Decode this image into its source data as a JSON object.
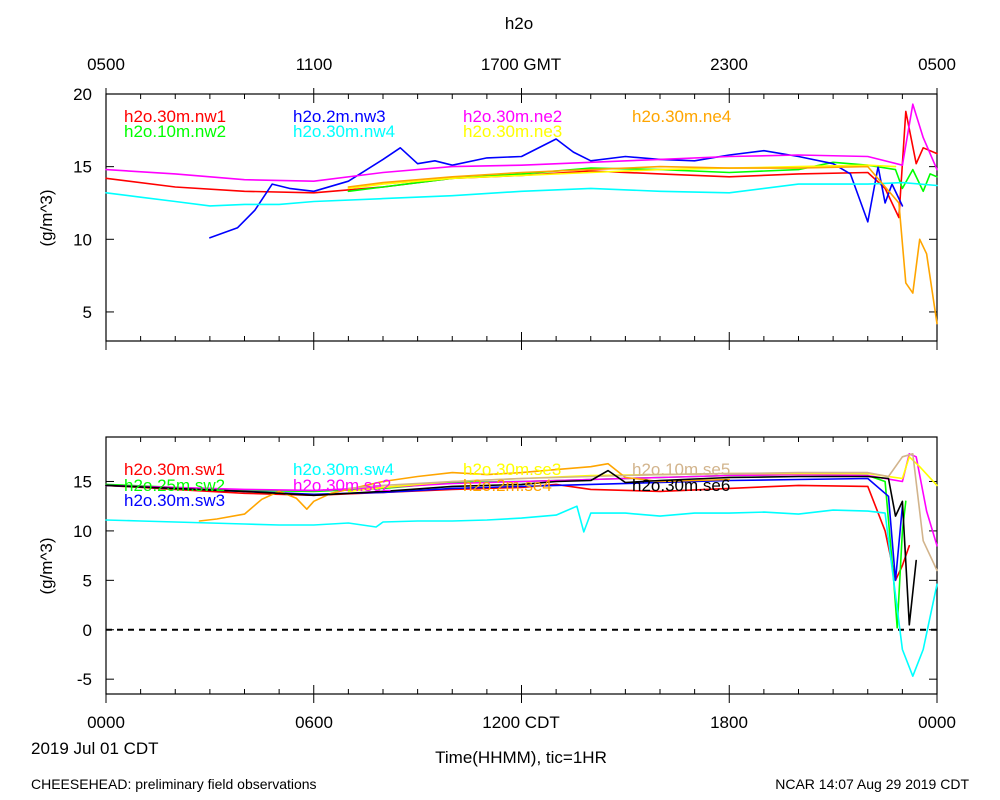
{
  "title": "h2o",
  "top_axis_ticks": [
    "0500",
    "1100",
    "1700 GMT",
    "2300",
    "0500"
  ],
  "bottom_axis_ticks": [
    "0000",
    "0600",
    "1200 CDT",
    "1800",
    "0000"
  ],
  "date_label": "2019 Jul 01 CDT",
  "xlabel": "Time(HHMM), tic=1HR",
  "footer_left": "CHEESEHEAD: preliminary field observations",
  "footer_right": "NCAR 14:07 Aug 29 2019 CDT",
  "chart_data": [
    {
      "type": "line",
      "panel": "top",
      "ylabel": "(g/m^3)",
      "xlim": [
        0,
        24
      ],
      "ylim": [
        3,
        20
      ],
      "yticks": [
        5,
        10,
        15,
        20
      ],
      "ytick_labels": [
        "5",
        "10",
        "15",
        "20"
      ],
      "series": [
        {
          "name": "h2o.30m.nw1",
          "color": "#ff0000",
          "x": [
            0,
            2,
            4,
            6,
            8,
            10,
            12,
            14,
            16,
            18,
            20,
            22,
            22.5,
            22.9,
            23.1,
            23.4,
            23.6,
            24
          ],
          "y": [
            14.2,
            13.6,
            13.3,
            13.2,
            13.6,
            14.2,
            14.4,
            14.7,
            14.5,
            14.3,
            14.5,
            14.6,
            13.5,
            11.5,
            18.8,
            15.2,
            16.3,
            15.9
          ]
        },
        {
          "name": "h2o.10m.nw2",
          "color": "#00ff00",
          "x": [
            7,
            8,
            10,
            12,
            14,
            16,
            18,
            20,
            21,
            22,
            22.8,
            23,
            23.3,
            23.6,
            23.8,
            24
          ],
          "y": [
            13.3,
            13.6,
            14.2,
            14.5,
            14.9,
            14.8,
            14.6,
            14.8,
            15.3,
            15.1,
            14.8,
            13.5,
            14.8,
            13.3,
            14.5,
            14.3
          ]
        },
        {
          "name": "h2o.2m.nw3",
          "color": "#0000ff",
          "x": [
            3,
            3.8,
            4.3,
            4.8,
            5.3,
            6,
            7,
            8,
            8.5,
            9,
            9.5,
            10,
            11,
            12,
            13,
            13.5,
            14,
            15,
            16,
            17,
            18,
            19,
            20,
            21,
            21.5,
            22,
            22.3,
            22.5,
            22.7,
            23
          ],
          "y": [
            10.1,
            10.8,
            12.0,
            13.8,
            13.5,
            13.3,
            14.0,
            15.5,
            16.3,
            15.2,
            15.4,
            15.1,
            15.6,
            15.7,
            16.9,
            16.0,
            15.4,
            15.7,
            15.5,
            15.4,
            15.8,
            16.1,
            15.7,
            15.2,
            14.5,
            11.2,
            15.0,
            12.5,
            13.8,
            12.3
          ]
        },
        {
          "name": "h2o.30m.nw4",
          "color": "#00ffff",
          "x": [
            0,
            1,
            2,
            3,
            4,
            5,
            6,
            8,
            10,
            12,
            14,
            16,
            18,
            20,
            22,
            23,
            24
          ],
          "y": [
            13.2,
            12.9,
            12.6,
            12.3,
            12.4,
            12.4,
            12.6,
            12.8,
            13.0,
            13.3,
            13.5,
            13.3,
            13.2,
            13.8,
            13.8,
            13.9,
            13.7
          ]
        },
        {
          "name": "h2o.30m.ne2",
          "color": "#ff00ff",
          "x": [
            0,
            2,
            4,
            6,
            8,
            10,
            12,
            14,
            16,
            18,
            20,
            22,
            23,
            23.3,
            23.6,
            24
          ],
          "y": [
            14.8,
            14.5,
            14.1,
            14.0,
            14.6,
            15.0,
            15.1,
            15.3,
            15.5,
            15.7,
            15.8,
            15.7,
            15.1,
            19.3,
            17.0,
            14.8
          ]
        },
        {
          "name": "h2o.30m.ne3",
          "color": "#ffff00",
          "x": [
            7,
            8,
            10,
            12,
            14,
            16,
            18,
            20,
            22,
            22.8
          ],
          "y": [
            13.5,
            13.8,
            14.2,
            14.4,
            14.6,
            14.8,
            14.9,
            15.0,
            15.1,
            15.0
          ]
        },
        {
          "name": "h2o.30m.ne4",
          "color": "#ffa500",
          "x": [
            7,
            8,
            10,
            12,
            14,
            16,
            18,
            20,
            22,
            22.9,
            23.1,
            23.3,
            23.5,
            23.7,
            24
          ],
          "y": [
            13.6,
            13.9,
            14.3,
            14.6,
            14.8,
            15.0,
            14.9,
            14.9,
            15.0,
            12.5,
            7.0,
            6.3,
            10.0,
            9.0,
            4.2
          ]
        }
      ]
    },
    {
      "type": "line",
      "panel": "bottom",
      "ylabel": "(g/m^3)",
      "xlim": [
        0,
        24
      ],
      "ylim": [
        -6.5,
        19.5
      ],
      "yticks": [
        -5,
        0,
        5,
        10,
        15
      ],
      "ytick_labels": [
        "-5",
        "0",
        "5",
        "10",
        "15"
      ],
      "zero_line": true,
      "series": [
        {
          "name": "h2o.30m.sw1",
          "color": "#ff0000",
          "x": [
            0,
            2,
            4,
            6,
            8,
            10,
            12,
            13,
            14,
            16,
            18,
            20,
            22,
            22.5,
            22.8,
            23.0,
            23.2
          ],
          "y": [
            14.6,
            14.2,
            13.8,
            13.6,
            13.9,
            14.2,
            14.4,
            14.7,
            14.2,
            14.0,
            14.3,
            14.6,
            14.5,
            10.0,
            5.0,
            6.5,
            8.5
          ]
        },
        {
          "name": "h2o.25m.sw2",
          "color": "#00ff00",
          "x": [
            0,
            2,
            4,
            6,
            8,
            10,
            12,
            14,
            16,
            18,
            20,
            22,
            22.5,
            22.75,
            22.85,
            23.0,
            23.1
          ],
          "y": [
            14.7,
            14.4,
            14.1,
            14.0,
            14.3,
            14.9,
            15.0,
            15.2,
            15.4,
            15.6,
            15.7,
            15.6,
            15.0,
            5.0,
            0.2,
            10.0,
            13.0
          ]
        },
        {
          "name": "h2o.30m.sw3",
          "color": "#0000ff",
          "x": [
            0,
            2,
            4,
            6,
            8,
            10,
            12,
            14,
            16,
            18,
            20,
            22,
            22.6,
            22.8,
            23.0
          ],
          "y": [
            14.6,
            14.3,
            14.0,
            13.7,
            13.9,
            14.3,
            14.5,
            14.7,
            14.9,
            15.1,
            15.2,
            15.3,
            13.5,
            5.0,
            12.5
          ]
        },
        {
          "name": "h2o.30m.sw4",
          "color": "#00ffff",
          "x": [
            0,
            1,
            2,
            3,
            4,
            5,
            6,
            7,
            7.8,
            8,
            9,
            10,
            11,
            12,
            13,
            13.6,
            13.8,
            14,
            15,
            16,
            17,
            18,
            19,
            20,
            21,
            22,
            22.5,
            23.0,
            23.3,
            23.6,
            24
          ],
          "y": [
            11.1,
            11.0,
            10.9,
            10.8,
            10.7,
            10.6,
            10.6,
            10.8,
            10.4,
            10.9,
            11.0,
            11.0,
            11.1,
            11.3,
            11.6,
            12.5,
            9.9,
            11.8,
            11.8,
            11.5,
            11.8,
            11.8,
            11.9,
            11.7,
            12.1,
            12.0,
            11.8,
            -2.0,
            -4.7,
            -2.0,
            4.6
          ]
        },
        {
          "name": "h2o.30m.se2",
          "color": "#ff00ff",
          "x": [
            0,
            2,
            4,
            6,
            8,
            10,
            12,
            14,
            16,
            18,
            20,
            22,
            23,
            23.2,
            23.4,
            23.7,
            24
          ],
          "y": [
            14.6,
            14.4,
            14.2,
            14.1,
            14.4,
            14.8,
            15.0,
            15.2,
            15.4,
            15.6,
            15.7,
            15.6,
            15.0,
            17.8,
            17.5,
            12.0,
            8.5
          ]
        },
        {
          "name": "h2o.30m.se3",
          "color": "#ffff00",
          "x": [
            7,
            8,
            10,
            12,
            14,
            16,
            18,
            20,
            22,
            23,
            23.2,
            23.5,
            24
          ],
          "y": [
            14.0,
            14.4,
            15.0,
            15.3,
            15.6,
            15.7,
            15.8,
            15.8,
            15.8,
            15.3,
            17.5,
            16.5,
            14.6
          ]
        },
        {
          "name": "h2o.2m.se4",
          "color": "#ffa500",
          "x": [
            2.7,
            3.2,
            4,
            4.5,
            5,
            5.5,
            5.8,
            6,
            6.5,
            7,
            8,
            9,
            10,
            11,
            12,
            13,
            14,
            14.5,
            15,
            16,
            17,
            18
          ],
          "y": [
            11.0,
            11.2,
            11.7,
            13.2,
            14.0,
            13.3,
            12.2,
            13.0,
            13.8,
            14.2,
            15.0,
            15.5,
            15.9,
            15.7,
            15.9,
            16.2,
            16.5,
            16.8,
            15.4,
            15.0,
            15.1,
            15.2
          ]
        },
        {
          "name": "h2o.10m.se5",
          "color": "#d2b48c",
          "x": [
            7,
            8,
            10,
            12,
            14,
            16,
            18,
            20,
            22,
            22.6,
            23.0,
            23.3,
            23.6,
            24
          ],
          "y": [
            14.3,
            14.6,
            15.0,
            15.3,
            15.5,
            15.7,
            15.8,
            15.9,
            15.9,
            15.5,
            17.5,
            17.8,
            9.0,
            6.0
          ]
        },
        {
          "name": "h2o.30m.se6",
          "color": "#000000",
          "x": [
            0,
            2,
            4,
            6,
            8,
            10,
            12,
            13,
            14,
            14.5,
            15,
            16,
            18,
            20,
            22,
            22.6,
            22.8,
            23.0,
            23.2,
            23.4
          ],
          "y": [
            14.6,
            14.3,
            14.0,
            13.6,
            14.0,
            14.5,
            14.7,
            15.0,
            15.1,
            16.1,
            14.9,
            15.1,
            15.4,
            15.5,
            15.5,
            15.3,
            11.5,
            13.0,
            0.5,
            7.0
          ]
        }
      ]
    }
  ]
}
